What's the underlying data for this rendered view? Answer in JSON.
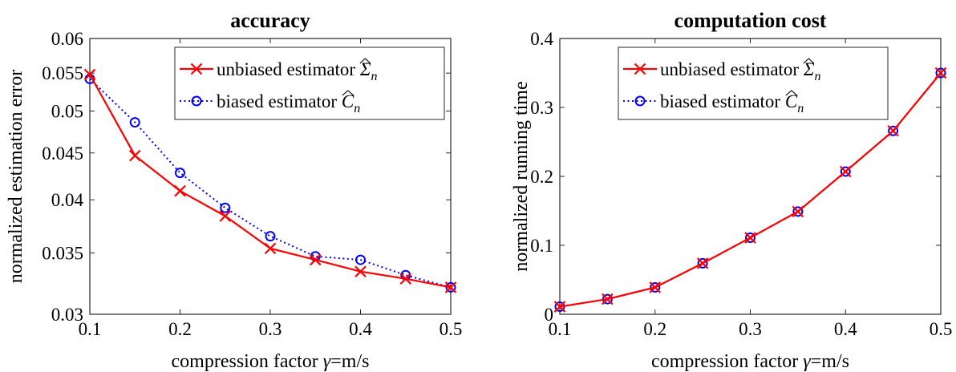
{
  "chart_data": [
    {
      "type": "line",
      "title": "accuracy",
      "xlabel_prefix": "compression factor ",
      "xlabel_symbol": "γ",
      "xlabel_suffix": "=m/s",
      "ylabel": "normalized estimation error",
      "xlim": [
        0.1,
        0.5
      ],
      "ylim": [
        0.03,
        0.06
      ],
      "yscale": "log",
      "xticks": [
        "0.1",
        "0.2",
        "0.3",
        "0.4",
        "0.5"
      ],
      "yticks": [
        "0.03",
        "0.035",
        "0.04",
        "0.045",
        "0.05",
        "0.055",
        "0.06"
      ],
      "grid": false,
      "legend_position": "top-right",
      "x": [
        0.1,
        0.15,
        0.2,
        0.25,
        0.3,
        0.35,
        0.4,
        0.45,
        0.5
      ],
      "series": [
        {
          "name_text": "unbiased estimator ",
          "name_symbol": "Σ",
          "name_sub": "n",
          "color": "#ff0000",
          "line": "solid",
          "marker": "x",
          "values": [
            0.0548,
            0.0447,
            0.0409,
            0.0384,
            0.0354,
            0.0344,
            0.0334,
            0.0328,
            0.0321
          ]
        },
        {
          "name_text": "biased estimator ",
          "name_symbol": "C",
          "name_sub": "n",
          "color": "#0000ff",
          "line": "dotted",
          "marker": "o",
          "values": [
            0.0542,
            0.0486,
            0.0428,
            0.0392,
            0.0365,
            0.0347,
            0.0344,
            0.0331,
            0.0321
          ]
        }
      ]
    },
    {
      "type": "line",
      "title": "computation cost",
      "xlabel_prefix": "compression factor ",
      "xlabel_symbol": "γ",
      "xlabel_suffix": "=m/s",
      "ylabel": "normalized running time",
      "xlim": [
        0.1,
        0.5
      ],
      "ylim": [
        0,
        0.4
      ],
      "yscale": "linear",
      "xticks": [
        "0.1",
        "0.2",
        "0.3",
        "0.4",
        "0.5"
      ],
      "yticks": [
        "0",
        "0.1",
        "0.2",
        "0.3",
        "0.4"
      ],
      "grid": false,
      "legend_position": "top-left",
      "x": [
        0.1,
        0.15,
        0.2,
        0.25,
        0.3,
        0.35,
        0.4,
        0.45,
        0.5
      ],
      "series": [
        {
          "name_text": "unbiased estimator ",
          "name_symbol": "Σ",
          "name_sub": "n",
          "color": "#ff0000",
          "line": "solid",
          "marker": "x",
          "values": [
            0.011,
            0.022,
            0.039,
            0.074,
            0.111,
            0.149,
            0.207,
            0.266,
            0.35
          ]
        },
        {
          "name_text": "biased estimator ",
          "name_symbol": "C",
          "name_sub": "n",
          "color": "#0000ff",
          "line": "dotted",
          "marker": "o",
          "values": [
            0.011,
            0.022,
            0.039,
            0.074,
            0.111,
            0.149,
            0.207,
            0.266,
            0.35
          ]
        }
      ]
    }
  ]
}
